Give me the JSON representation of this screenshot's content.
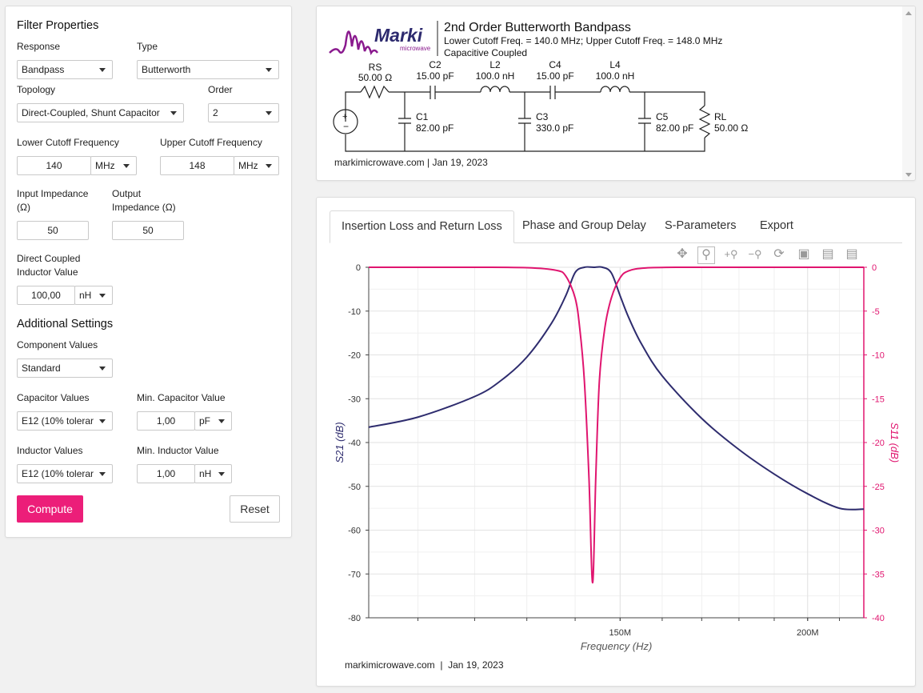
{
  "form": {
    "title": "Filter Properties",
    "response_label": "Response",
    "response_value": "Bandpass",
    "type_label": "Type",
    "type_value": "Butterworth",
    "topology_label": "Topology",
    "topology_value": "Direct-Coupled, Shunt Capacitor",
    "order_label": "Order",
    "order_value": "2",
    "lower_label": "Lower Cutoff Frequency",
    "lower_value": "140",
    "lower_unit": "MHz",
    "upper_label": "Upper Cutoff Frequency",
    "upper_value": "148",
    "upper_unit": "MHz",
    "input_imp_label_1": "Input Impedance",
    "input_imp_label_2": "(Ω)",
    "input_imp_value": "50",
    "output_imp_label_1": "Output",
    "output_imp_label_2": "Impedance (Ω)",
    "output_imp_value": "50",
    "dc_label_1": "Direct Coupled",
    "dc_label_2": "Inductor Value",
    "dc_value": "100,00",
    "dc_unit": "nH",
    "additional_title": "Additional Settings",
    "component_values_label": "Component Values",
    "component_values_value": "Standard",
    "cap_values_label": "Capacitor Values",
    "cap_values_value": "E12 (10% tolerar",
    "min_cap_label": "Min. Capacitor Value",
    "min_cap_value": "1,00",
    "min_cap_unit": "pF",
    "ind_values_label": "Inductor Values",
    "ind_values_value": "E12 (10% tolerar",
    "min_ind_label": "Min. Inductor Value",
    "min_ind_value": "1,00",
    "min_ind_unit": "nH",
    "compute_label": "Compute",
    "reset_label": "Reset"
  },
  "schematic": {
    "logo_text": "Marki",
    "logo_sub": "microwave",
    "title": "2nd Order Butterworth Bandpass",
    "line2": "Lower Cutoff Freq. = 140.0 MHz; Upper Cutoff Freq. = 148.0 MHz",
    "line3": "Capacitive Coupled",
    "footer": "markimicrowave.com | Jan 19, 2023",
    "components": {
      "rs_name": "RS",
      "rs_value": "50.00 Ω",
      "c2_name": "C2",
      "c2_value": "15.00 pF",
      "l2_name": "L2",
      "l2_value": "100.0 nH",
      "c4_name": "C4",
      "c4_value": "15.00 pF",
      "l4_name": "L4",
      "l4_value": "100.0 nH",
      "c1_name": "C1",
      "c1_value": "82.00 pF",
      "c3_name": "C3",
      "c3_value": "330.0 pF",
      "c5_name": "C5",
      "c5_value": "82.00 pF",
      "rl_name": "RL",
      "rl_value": "50.00 Ω"
    }
  },
  "tabs": [
    "Insertion Loss and Return Loss",
    "Phase and Group Delay",
    "S-Parameters",
    "Export"
  ],
  "toolbar_icons": [
    "pan-icon",
    "zoom-icon",
    "zoom-in-icon",
    "zoom-out-icon",
    "reset-icon",
    "save-icon",
    "hover-closest-icon",
    "hover-compare-icon"
  ],
  "chart_footer": "markimicrowave.com  |  Jan 19, 2023",
  "colors": {
    "accent": "#ec1e79",
    "s21": "#2e2c6e",
    "s11": "#e0156f"
  },
  "chart_data": {
    "type": "line",
    "xlabel": "Frequency (Hz)",
    "ylabel_left": "S21 (dB)",
    "ylabel_right": "S11 (dB)",
    "x_scale": "log",
    "xlim_mhz": [
      102,
      218
    ],
    "x_tick_labels": [
      {
        "value": 150,
        "label": "150M"
      },
      {
        "value": 200,
        "label": "200M"
      }
    ],
    "ylim_left": [
      -80,
      0
    ],
    "ylim_right": [
      -40,
      0
    ],
    "y_ticks_left": [
      0,
      -10,
      -20,
      -30,
      -40,
      -50,
      -60,
      -70,
      -80
    ],
    "y_ticks_right": [
      0,
      -5,
      -10,
      -15,
      -20,
      -25,
      -30,
      -35,
      -40
    ],
    "series": [
      {
        "name": "S21",
        "axis": "left",
        "x_mhz": [
          102,
          110,
          120,
          125,
          130,
          135,
          138,
          140,
          142,
          144,
          146,
          148,
          150,
          152,
          155,
          160,
          170,
          180,
          190,
          200,
          210,
          218
        ],
        "y": [
          -36.5,
          -34.2,
          -29.5,
          -25.8,
          -20.5,
          -12.8,
          -6.5,
          -1.2,
          0,
          0,
          0,
          -1.3,
          -6.5,
          -11.5,
          -17.5,
          -24.8,
          -34.5,
          -41.6,
          -47.2,
          -51.7,
          -55.0,
          -55.2
        ]
      },
      {
        "name": "S11",
        "axis": "right",
        "x_mhz": [
          102,
          120,
          130,
          136,
          138,
          140,
          141,
          142,
          143,
          143.8,
          144.5,
          145.3,
          146.5,
          148,
          150,
          152,
          156,
          165,
          180,
          218
        ],
        "y": [
          0,
          0,
          -0.05,
          -0.35,
          -1.0,
          -3.5,
          -7.0,
          -13.0,
          -24.0,
          -36.0,
          -24.0,
          -13.0,
          -7.0,
          -3.5,
          -1.2,
          -0.4,
          -0.08,
          0,
          0,
          0
        ]
      }
    ]
  }
}
